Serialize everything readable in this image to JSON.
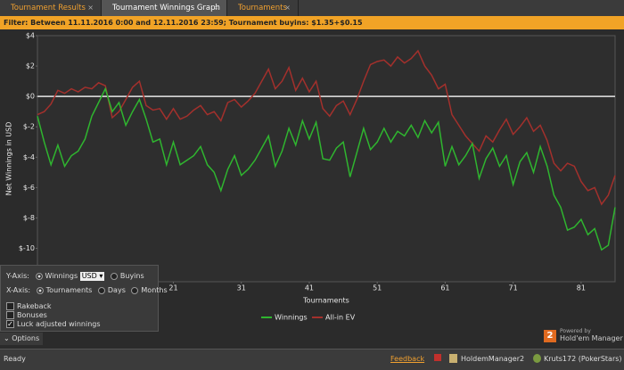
{
  "tabs": [
    {
      "label": "Tournament Results"
    },
    {
      "label": "Tournament Winnings Graph"
    },
    {
      "label": "Tournaments"
    }
  ],
  "filter": "Filter: Between 11.11.2016 0:00 and 12.11.2016 23:59; Tournament buyins: $1.35+$0.15",
  "chart_data": {
    "type": "line",
    "x_label": "Tournaments",
    "y_label": "Net Winnings in USD",
    "xlim": [
      1,
      86
    ],
    "xticks": [
      21,
      31,
      41,
      51,
      61,
      71,
      81
    ],
    "ylim": [
      -12.2,
      4
    ],
    "yticks": [
      {
        "value": 4,
        "label": "$4"
      },
      {
        "value": 2,
        "label": "$2"
      },
      {
        "value": 0,
        "label": "$0"
      },
      {
        "value": -2,
        "label": "$-2"
      },
      {
        "value": -4,
        "label": "$-4"
      },
      {
        "value": -6,
        "label": "$-6"
      },
      {
        "value": -8,
        "label": "$-8"
      },
      {
        "value": -10,
        "label": "$-10"
      }
    ],
    "zero_line": true,
    "legend": "bottom",
    "x": [
      1,
      2,
      3,
      4,
      5,
      6,
      7,
      8,
      9,
      10,
      11,
      12,
      13,
      14,
      15,
      16,
      17,
      18,
      19,
      20,
      21,
      22,
      23,
      24,
      25,
      26,
      27,
      28,
      29,
      30,
      31,
      32,
      33,
      34,
      35,
      36,
      37,
      38,
      39,
      40,
      41,
      42,
      43,
      44,
      45,
      46,
      47,
      48,
      49,
      50,
      51,
      52,
      53,
      54,
      55,
      56,
      57,
      58,
      59,
      60,
      61,
      62,
      63,
      64,
      65,
      66,
      67,
      68,
      69,
      70,
      71,
      72,
      73,
      74,
      75,
      76,
      77,
      78,
      79,
      80,
      81,
      82,
      83,
      84,
      85,
      86
    ],
    "series": [
      {
        "name": "Winnings",
        "color": "#2fb52f",
        "values": [
          -1.3,
          -3.0,
          -4.5,
          -3.2,
          -4.6,
          -3.9,
          -3.6,
          -2.8,
          -1.3,
          -0.4,
          0.5,
          -1.0,
          -0.4,
          -1.9,
          -1.0,
          -0.2,
          -1.5,
          -3.0,
          -2.8,
          -4.5,
          -3.0,
          -4.5,
          -4.2,
          -3.9,
          -3.3,
          -4.5,
          -5.0,
          -6.2,
          -4.8,
          -3.9,
          -5.2,
          -4.8,
          -4.2,
          -3.4,
          -2.6,
          -4.6,
          -3.6,
          -2.1,
          -3.2,
          -1.6,
          -2.8,
          -1.7,
          -4.1,
          -4.2,
          -3.4,
          -3.0,
          -5.3,
          -3.7,
          -2.1,
          -3.5,
          -3.0,
          -2.1,
          -3.0,
          -2.3,
          -2.6,
          -1.9,
          -2.7,
          -1.6,
          -2.4,
          -1.7,
          -4.6,
          -3.3,
          -4.5,
          -3.9,
          -3.1,
          -5.4,
          -4.1,
          -3.4,
          -4.6,
          -3.9,
          -5.8,
          -4.3,
          -3.7,
          -5.0,
          -3.3,
          -4.6,
          -6.5,
          -7.3,
          -8.8,
          -8.6,
          -8.1,
          -9.1,
          -8.7,
          -10.1,
          -9.8,
          -7.3
        ]
      },
      {
        "name": "All-in EV",
        "color": "#a3302c",
        "values": [
          -1.2,
          -1.0,
          -0.5,
          0.4,
          0.2,
          0.5,
          0.3,
          0.6,
          0.5,
          0.9,
          0.7,
          -1.4,
          -1.0,
          -0.2,
          0.6,
          1.0,
          -0.6,
          -0.9,
          -0.8,
          -1.5,
          -0.8,
          -1.5,
          -1.3,
          -0.9,
          -0.6,
          -1.2,
          -1.0,
          -1.6,
          -0.4,
          -0.2,
          -0.7,
          -0.3,
          0.2,
          1.0,
          1.8,
          0.5,
          1.0,
          1.9,
          0.4,
          1.2,
          0.3,
          1.0,
          -0.8,
          -1.3,
          -0.6,
          -0.3,
          -1.2,
          -0.2,
          1.0,
          2.1,
          2.3,
          2.4,
          2.0,
          2.6,
          2.2,
          2.5,
          3.0,
          2.0,
          1.4,
          0.5,
          0.8,
          -1.2,
          -1.9,
          -2.6,
          -3.1,
          -3.6,
          -2.6,
          -3.0,
          -2.2,
          -1.5,
          -2.5,
          -2.0,
          -1.4,
          -2.3,
          -1.9,
          -2.9,
          -4.4,
          -4.9,
          -4.4,
          -4.6,
          -5.6,
          -6.2,
          -6.0,
          -7.1,
          -6.5,
          -5.2
        ]
      }
    ]
  },
  "options": {
    "y_axis": {
      "label": "Y-Axis:",
      "winnings": "Winnings",
      "currency": "USD",
      "buyins": "Buyins"
    },
    "x_axis": {
      "label": "X-Axis:",
      "tournaments": "Tournaments",
      "days": "Days",
      "months": "Months"
    },
    "checkboxes": [
      "Rakeback",
      "Bonuses",
      "Luck adjusted winnings"
    ],
    "toggle": "Options"
  },
  "logo": {
    "powered": "Powered by",
    "name": "Hold'em Manager",
    "badge": "2"
  },
  "status": {
    "ready": "Ready",
    "feedback": "Feedback",
    "app": "HoldemManager2",
    "player": "Kruts172 (PokerStars)"
  }
}
